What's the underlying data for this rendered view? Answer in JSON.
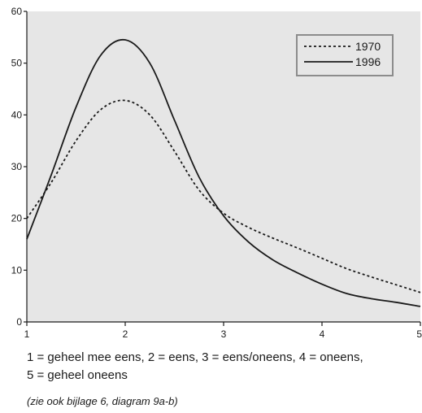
{
  "chart_data": {
    "type": "line",
    "title": "",
    "xlabel": "",
    "ylabel": "",
    "xlim": [
      1,
      5
    ],
    "ylim": [
      0,
      60
    ],
    "x_ticks": [
      "1",
      "2",
      "3",
      "4",
      "5"
    ],
    "y_ticks": [
      "0",
      "10",
      "20",
      "30",
      "40",
      "50",
      "60"
    ],
    "grid": false,
    "legend_position": "top-right",
    "background": "#e6e6e6",
    "series": [
      {
        "name": "1970",
        "style": "dotted",
        "color": "#1a1a1a",
        "x": [
          1,
          1.25,
          1.5,
          1.75,
          2,
          2.25,
          2.5,
          2.75,
          3,
          3.25,
          3.5,
          3.75,
          4,
          4.25,
          4.5,
          4.75,
          5
        ],
        "y": [
          20,
          27,
          35,
          41,
          42.8,
          40,
          33,
          25.5,
          21,
          18.3,
          16.2,
          14.3,
          12.3,
          10.3,
          8.7,
          7.2,
          5.7
        ]
      },
      {
        "name": "1996",
        "style": "solid",
        "color": "#1a1a1a",
        "x": [
          1,
          1.25,
          1.5,
          1.75,
          2,
          2.25,
          2.5,
          2.75,
          3,
          3.25,
          3.5,
          3.75,
          4,
          4.25,
          4.5,
          4.75,
          5
        ],
        "y": [
          16,
          28.5,
          41.5,
          51.5,
          54.5,
          50,
          39,
          28,
          20.5,
          15.5,
          12,
          9.5,
          7.3,
          5.5,
          4.5,
          3.8,
          3
        ]
      }
    ]
  },
  "caption": {
    "line1": "1 = geheel mee eens,  2 = eens,  3 = eens/oneens,  4 = oneens,",
    "line2": "5 = geheel oneens"
  },
  "note": "(zie ook bijlage 6, diagram 9a-b)"
}
